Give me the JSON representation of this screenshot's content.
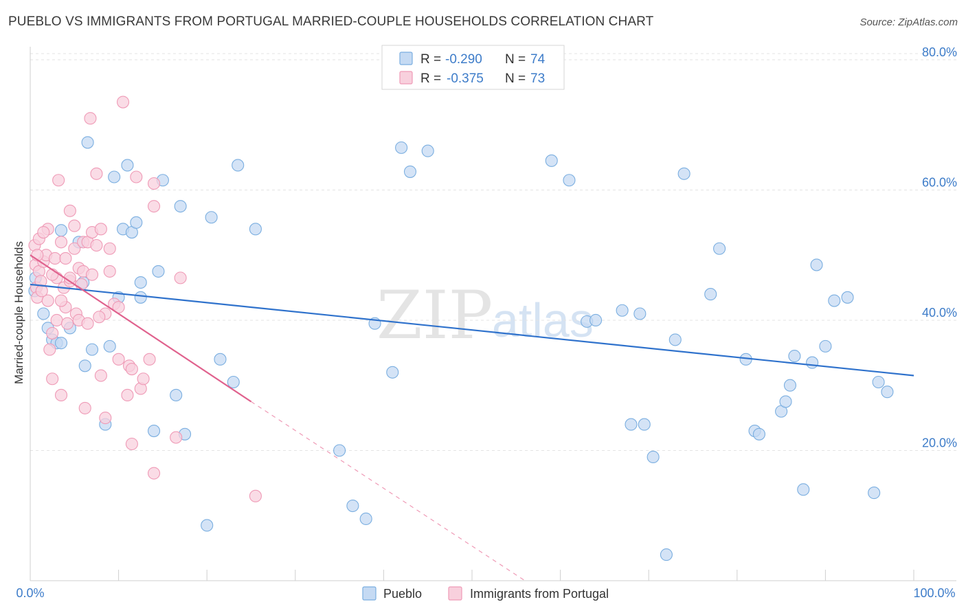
{
  "header": {
    "title": "PUEBLO VS IMMIGRANTS FROM PORTUGAL MARRIED-COUPLE HOUSEHOLDS CORRELATION CHART",
    "source": "Source: ZipAtlas.com"
  },
  "chart_data": {
    "type": "scatter",
    "title": "PUEBLO VS IMMIGRANTS FROM PORTUGAL MARRIED-COUPLE HOUSEHOLDS CORRELATION CHART",
    "xlabel": "",
    "ylabel": "Married-couple Households",
    "xlim": [
      0,
      100
    ],
    "ylim": [
      0,
      82
    ],
    "x_tick_labels": [
      "0.0%",
      "100.0%"
    ],
    "y_ticks": [
      20,
      40,
      60,
      80
    ],
    "y_tick_labels": [
      "20.0%",
      "40.0%",
      "60.0%",
      "80.0%"
    ],
    "grid": true,
    "watermark": {
      "zip": "ZIP",
      "atlas": "atlas"
    },
    "legend": {
      "placement": "top-center",
      "entries": [
        {
          "series": "Pueblo",
          "r_label": "R =",
          "r_value": "-0.290",
          "n_label": "N =",
          "n_value": "74"
        },
        {
          "series": "Immigrants from Portugal",
          "r_label": "R =",
          "r_value": "-0.375",
          "n_label": "N =",
          "n_value": "73"
        }
      ]
    },
    "series": [
      {
        "name": "Pueblo",
        "color": "#7aaee0",
        "fill": "#c5daf3",
        "line_color": "#2f72cc",
        "trend": {
          "x0": 0,
          "y0": 45.5,
          "x1": 100,
          "y1": 31.5
        },
        "points": [
          [
            0.6,
            46.5
          ],
          [
            1.5,
            41.0
          ],
          [
            2.0,
            38.8
          ],
          [
            2.5,
            37.0
          ],
          [
            3.0,
            36.5
          ],
          [
            3.5,
            36.5
          ],
          [
            3.5,
            53.8
          ],
          [
            4.5,
            38.8
          ],
          [
            5.5,
            52.0
          ],
          [
            6.0,
            45.8
          ],
          [
            6.2,
            33.0
          ],
          [
            6.5,
            67.3
          ],
          [
            7.0,
            35.5
          ],
          [
            8.5,
            24.0
          ],
          [
            9.0,
            36.0
          ],
          [
            9.5,
            62.0
          ],
          [
            10.0,
            43.5
          ],
          [
            10.5,
            54.0
          ],
          [
            11.0,
            63.8
          ],
          [
            11.5,
            53.5
          ],
          [
            12.0,
            55.0
          ],
          [
            12.5,
            45.8
          ],
          [
            12.5,
            43.5
          ],
          [
            14.0,
            23.0
          ],
          [
            14.5,
            47.5
          ],
          [
            15.0,
            61.5
          ],
          [
            16.5,
            28.5
          ],
          [
            17.0,
            57.5
          ],
          [
            17.5,
            22.5
          ],
          [
            20.0,
            8.5
          ],
          [
            20.5,
            55.8
          ],
          [
            21.5,
            34.0
          ],
          [
            23.0,
            30.5
          ],
          [
            23.5,
            63.8
          ],
          [
            25.5,
            54.0
          ],
          [
            35.0,
            20.0
          ],
          [
            36.5,
            11.5
          ],
          [
            38.0,
            9.5
          ],
          [
            39.0,
            39.5
          ],
          [
            41.0,
            32.0
          ],
          [
            42.0,
            66.5
          ],
          [
            43.0,
            62.8
          ],
          [
            45.0,
            66.0
          ],
          [
            59.0,
            64.5
          ],
          [
            61.0,
            61.5
          ],
          [
            63.0,
            39.8
          ],
          [
            64.0,
            40.0
          ],
          [
            67.0,
            41.5
          ],
          [
            68.0,
            24.0
          ],
          [
            69.0,
            41.0
          ],
          [
            69.5,
            24.0
          ],
          [
            70.5,
            19.0
          ],
          [
            72.0,
            4.0
          ],
          [
            73.0,
            37.0
          ],
          [
            74.0,
            62.5
          ],
          [
            77.0,
            44.0
          ],
          [
            78.0,
            51.0
          ],
          [
            81.0,
            34.0
          ],
          [
            82.0,
            23.0
          ],
          [
            82.5,
            22.5
          ],
          [
            85.0,
            26.0
          ],
          [
            85.5,
            27.5
          ],
          [
            86.0,
            30.0
          ],
          [
            86.5,
            34.5
          ],
          [
            87.5,
            14.0
          ],
          [
            88.5,
            33.5
          ],
          [
            89.0,
            48.5
          ],
          [
            90.0,
            36.0
          ],
          [
            91.0,
            43.0
          ],
          [
            92.5,
            43.5
          ],
          [
            95.5,
            13.5
          ],
          [
            96.0,
            30.5
          ],
          [
            97.0,
            29.0
          ],
          [
            0.5,
            44.5
          ]
        ]
      },
      {
        "name": "Immigrants from Portugal",
        "color": "#ef9ab6",
        "fill": "#f8d0dd",
        "line_color": "#e0628e",
        "trend": {
          "x0": 0,
          "y0": 50.0,
          "x1": 25,
          "y1": 27.5
        },
        "trend_dashed": {
          "x0": 25,
          "y0": 27.5,
          "x1": 56,
          "y1": 0
        },
        "points": [
          [
            0.5,
            51.5
          ],
          [
            0.6,
            48.5
          ],
          [
            0.7,
            45.0
          ],
          [
            0.8,
            43.5
          ],
          [
            1.0,
            52.5
          ],
          [
            1.0,
            47.5
          ],
          [
            1.2,
            46.0
          ],
          [
            1.5,
            49.0
          ],
          [
            1.8,
            50.0
          ],
          [
            2.0,
            54.0
          ],
          [
            2.0,
            43.0
          ],
          [
            2.2,
            35.5
          ],
          [
            2.5,
            38.0
          ],
          [
            2.5,
            31.0
          ],
          [
            2.8,
            49.5
          ],
          [
            3.0,
            46.5
          ],
          [
            3.0,
            40.0
          ],
          [
            3.2,
            61.5
          ],
          [
            3.5,
            52.0
          ],
          [
            3.5,
            28.5
          ],
          [
            3.8,
            45.0
          ],
          [
            4.0,
            49.5
          ],
          [
            4.0,
            42.0
          ],
          [
            4.2,
            39.5
          ],
          [
            4.5,
            56.8
          ],
          [
            4.5,
            46.0
          ],
          [
            5.0,
            54.5
          ],
          [
            5.0,
            51.0
          ],
          [
            5.2,
            41.0
          ],
          [
            5.5,
            40.0
          ],
          [
            5.5,
            48.0
          ],
          [
            6.0,
            52.0
          ],
          [
            6.0,
            47.5
          ],
          [
            6.2,
            26.5
          ],
          [
            6.5,
            52.0
          ],
          [
            6.5,
            39.5
          ],
          [
            6.8,
            71.0
          ],
          [
            7.0,
            53.5
          ],
          [
            7.0,
            47.0
          ],
          [
            7.5,
            62.5
          ],
          [
            7.5,
            51.5
          ],
          [
            8.0,
            54.0
          ],
          [
            8.0,
            31.5
          ],
          [
            8.5,
            41.0
          ],
          [
            8.5,
            25.0
          ],
          [
            9.0,
            51.0
          ],
          [
            9.0,
            47.5
          ],
          [
            9.5,
            42.5
          ],
          [
            10.0,
            42.0
          ],
          [
            10.0,
            34.0
          ],
          [
            10.5,
            73.5
          ],
          [
            11.0,
            28.5
          ],
          [
            11.2,
            33.0
          ],
          [
            11.5,
            21.0
          ],
          [
            11.5,
            32.5
          ],
          [
            12.0,
            62.0
          ],
          [
            12.5,
            29.5
          ],
          [
            12.8,
            31.0
          ],
          [
            13.5,
            34.0
          ],
          [
            14.0,
            61.0
          ],
          [
            14.0,
            57.5
          ],
          [
            14.0,
            16.5
          ],
          [
            16.5,
            22.0
          ],
          [
            17.0,
            46.5
          ],
          [
            25.5,
            13.0
          ],
          [
            1.5,
            53.5
          ],
          [
            2.5,
            47.0
          ],
          [
            3.5,
            43.0
          ],
          [
            4.5,
            46.5
          ],
          [
            5.8,
            45.5
          ],
          [
            7.8,
            40.5
          ],
          [
            0.8,
            50.0
          ],
          [
            1.3,
            44.5
          ]
        ]
      }
    ]
  }
}
